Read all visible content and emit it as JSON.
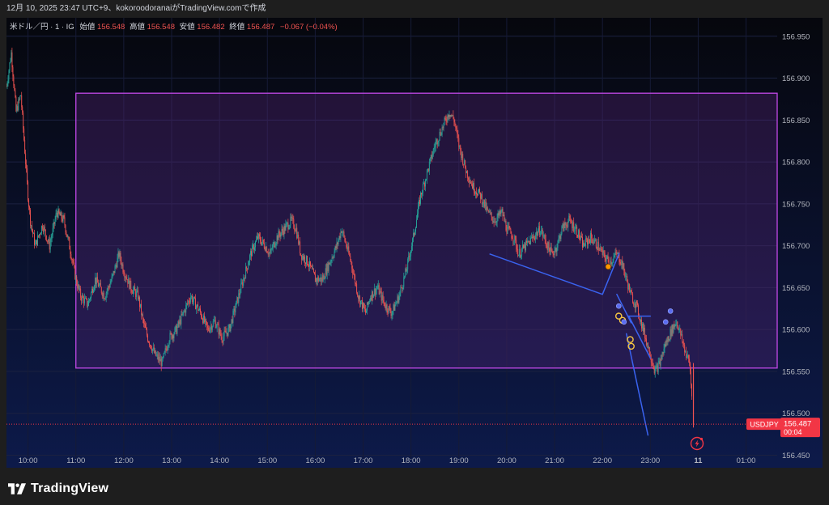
{
  "header": {
    "publish_line": "12月 10, 2025 23:47 UTC+9、kokoroodoranaiがTradingView.comで作成"
  },
  "legend": {
    "symbol": "米ドル／円 · 1 · IG",
    "open_label": "始値",
    "open_value": "156.548",
    "high_label": "高値",
    "high_value": "156.548",
    "low_label": "安値",
    "low_value": "156.482",
    "close_label": "終値",
    "close_value": "156.487",
    "change": "−0.067 (−0.04%)"
  },
  "price_tag": {
    "symbol": "USDJPY",
    "price": "156.487",
    "countdown": "00:04"
  },
  "footer": {
    "brand": "TradingView"
  },
  "colors": {
    "background": "#0b0f24",
    "up": "#26a69a",
    "down": "#ef5350",
    "rectangle_border": "#c248e8",
    "rectangle_fill": "#6a2a8c",
    "trendline": "#3a63f0",
    "price_tag": "#f23645"
  },
  "chart_data": {
    "type": "candlestick",
    "title": "",
    "xlabel": "",
    "ylabel": "",
    "x_ticks": [
      "10:00",
      "11:00",
      "12:00",
      "13:00",
      "14:00",
      "15:00",
      "16:00",
      "17:00",
      "18:00",
      "19:00",
      "20:00",
      "21:00",
      "22:00",
      "23:00",
      "11",
      "01:00"
    ],
    "x_range": [
      9.55,
      25.65
    ],
    "y_ticks": [
      "156.950",
      "156.900",
      "156.850",
      "156.800",
      "156.750",
      "156.700",
      "156.650",
      "156.600",
      "156.550",
      "156.500",
      "156.450"
    ],
    "ylim": [
      156.435,
      156.972
    ],
    "last_price": 156.487,
    "price_path": [
      [
        9.55,
        156.89
      ],
      [
        9.65,
        156.93
      ],
      [
        9.75,
        156.86
      ],
      [
        9.85,
        156.88
      ],
      [
        9.95,
        156.8
      ],
      [
        10.0,
        156.76
      ],
      [
        10.05,
        156.73
      ],
      [
        10.15,
        156.7
      ],
      [
        10.3,
        156.725
      ],
      [
        10.45,
        156.7
      ],
      [
        10.6,
        156.74
      ],
      [
        10.75,
        156.73
      ],
      [
        10.9,
        156.69
      ],
      [
        11.0,
        156.66
      ],
      [
        11.1,
        156.64
      ],
      [
        11.25,
        156.63
      ],
      [
        11.4,
        156.66
      ],
      [
        11.6,
        156.64
      ],
      [
        11.75,
        156.66
      ],
      [
        11.9,
        156.69
      ],
      [
        12.0,
        156.67
      ],
      [
        12.15,
        156.65
      ],
      [
        12.3,
        156.64
      ],
      [
        12.4,
        156.61
      ],
      [
        12.5,
        156.59
      ],
      [
        12.65,
        156.57
      ],
      [
        12.8,
        156.56
      ],
      [
        12.95,
        156.59
      ],
      [
        13.1,
        156.6
      ],
      [
        13.25,
        156.62
      ],
      [
        13.4,
        156.64
      ],
      [
        13.6,
        156.62
      ],
      [
        13.75,
        156.6
      ],
      [
        13.9,
        156.61
      ],
      [
        14.05,
        156.59
      ],
      [
        14.2,
        156.6
      ],
      [
        14.35,
        156.63
      ],
      [
        14.5,
        156.66
      ],
      [
        14.65,
        156.69
      ],
      [
        14.8,
        156.71
      ],
      [
        14.95,
        156.7
      ],
      [
        15.05,
        156.69
      ],
      [
        15.2,
        156.71
      ],
      [
        15.35,
        156.72
      ],
      [
        15.5,
        156.73
      ],
      [
        15.6,
        156.72
      ],
      [
        15.7,
        156.69
      ],
      [
        15.85,
        156.68
      ],
      [
        16.0,
        156.66
      ],
      [
        16.15,
        156.66
      ],
      [
        16.3,
        156.68
      ],
      [
        16.45,
        156.7
      ],
      [
        16.55,
        156.72
      ],
      [
        16.65,
        156.7
      ],
      [
        16.75,
        156.68
      ],
      [
        16.9,
        156.64
      ],
      [
        17.05,
        156.62
      ],
      [
        17.15,
        156.64
      ],
      [
        17.3,
        156.65
      ],
      [
        17.45,
        156.63
      ],
      [
        17.6,
        156.62
      ],
      [
        17.75,
        156.64
      ],
      [
        17.9,
        156.67
      ],
      [
        18.05,
        156.71
      ],
      [
        18.2,
        156.76
      ],
      [
        18.35,
        156.79
      ],
      [
        18.5,
        156.82
      ],
      [
        18.65,
        156.84
      ],
      [
        18.8,
        156.86
      ],
      [
        18.9,
        156.85
      ],
      [
        19.0,
        156.82
      ],
      [
        19.15,
        156.79
      ],
      [
        19.3,
        156.77
      ],
      [
        19.45,
        156.76
      ],
      [
        19.6,
        156.74
      ],
      [
        19.75,
        156.73
      ],
      [
        19.9,
        156.74
      ],
      [
        20.0,
        156.72
      ],
      [
        20.15,
        156.71
      ],
      [
        20.25,
        156.69
      ],
      [
        20.4,
        156.7
      ],
      [
        20.55,
        156.71
      ],
      [
        20.7,
        156.72
      ],
      [
        20.85,
        156.7
      ],
      [
        20.95,
        156.69
      ],
      [
        21.05,
        156.7
      ],
      [
        21.15,
        156.72
      ],
      [
        21.3,
        156.73
      ],
      [
        21.45,
        156.72
      ],
      [
        21.6,
        156.7
      ],
      [
        21.75,
        156.71
      ],
      [
        21.9,
        156.7
      ],
      [
        22.0,
        156.69
      ],
      [
        22.15,
        156.68
      ],
      [
        22.3,
        156.69
      ],
      [
        22.4,
        156.68
      ],
      [
        22.5,
        156.66
      ],
      [
        22.6,
        156.64
      ],
      [
        22.7,
        156.63
      ],
      [
        22.8,
        156.61
      ],
      [
        22.9,
        156.59
      ],
      [
        23.0,
        156.57
      ],
      [
        23.1,
        156.55
      ],
      [
        23.2,
        156.56
      ],
      [
        23.3,
        156.58
      ],
      [
        23.45,
        156.6
      ],
      [
        23.55,
        156.61
      ],
      [
        23.65,
        156.59
      ],
      [
        23.75,
        156.57
      ],
      [
        23.82,
        156.56
      ],
      [
        23.88,
        156.51
      ]
    ],
    "range_box": {
      "x_start": 11.0,
      "x_end": 25.65,
      "y_top": 156.882,
      "y_bottom": 156.554
    },
    "trendlines": [
      {
        "from": [
          19.65,
          156.69
        ],
        "to": [
          22.0,
          156.642
        ]
      },
      {
        "from": [
          22.0,
          156.642
        ],
        "to": [
          22.35,
          156.691
        ]
      },
      {
        "from": [
          22.3,
          156.642
        ],
        "to": [
          22.6,
          156.608
        ]
      },
      {
        "from": [
          22.5,
          156.595
        ],
        "to": [
          22.95,
          156.474
        ]
      },
      {
        "from": [
          22.55,
          156.616
        ],
        "to": [
          23.0,
          156.566
        ]
      },
      {
        "from": [
          22.55,
          156.616
        ],
        "to": [
          23.0,
          156.616
        ]
      }
    ],
    "markers": [
      {
        "x": 22.12,
        "y": 156.675,
        "style": "orange"
      },
      {
        "x": 22.34,
        "y": 156.628,
        "style": "blue"
      },
      {
        "x": 22.34,
        "y": 156.616,
        "style": "yellow-ring"
      },
      {
        "x": 22.42,
        "y": 156.611,
        "style": "yellow-ring"
      },
      {
        "x": 22.45,
        "y": 156.609,
        "style": "blue"
      },
      {
        "x": 22.58,
        "y": 156.588,
        "style": "yellow-ring"
      },
      {
        "x": 22.6,
        "y": 156.58,
        "style": "yellow-ring"
      },
      {
        "x": 23.32,
        "y": 156.609,
        "style": "blue"
      },
      {
        "x": 23.42,
        "y": 156.622,
        "style": "blue"
      }
    ]
  }
}
